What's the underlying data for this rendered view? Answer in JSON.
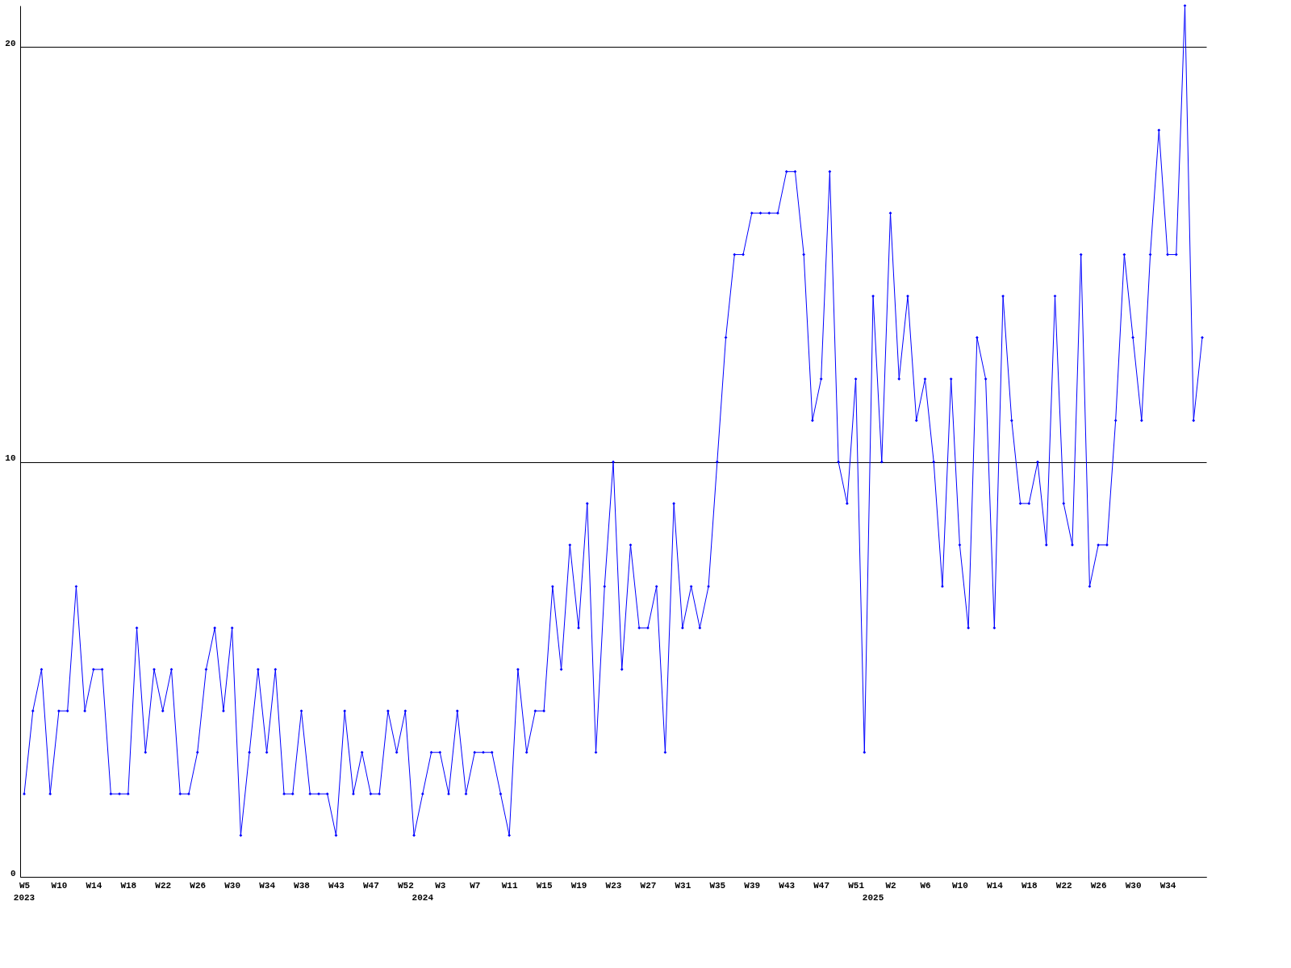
{
  "chart_data": {
    "type": "line",
    "categories": [
      "W5",
      null,
      null,
      null,
      "W10",
      null,
      null,
      null,
      "W14",
      null,
      null,
      null,
      "W18",
      null,
      null,
      null,
      "W22",
      null,
      null,
      null,
      "W26",
      null,
      null,
      null,
      "W30",
      null,
      null,
      null,
      "W34",
      null,
      null,
      null,
      "W38",
      null,
      null,
      null,
      "W43",
      null,
      null,
      null,
      "W47",
      null,
      null,
      null,
      "W52",
      null,
      null,
      null,
      "W3",
      null,
      null,
      null,
      "W7",
      null,
      null,
      null,
      "W11",
      null,
      null,
      null,
      "W15",
      null,
      null,
      null,
      "W19",
      null,
      null,
      null,
      "W23",
      null,
      null,
      null,
      "W27",
      null,
      null,
      null,
      "W31",
      null,
      null,
      null,
      "W35",
      null,
      null,
      null,
      "W39",
      null,
      null,
      null,
      "W43",
      null,
      null,
      null,
      "W47",
      null,
      null,
      null,
      "W51",
      null,
      null,
      null,
      "W2",
      null,
      null,
      null,
      "W6",
      null,
      null,
      null,
      "W10",
      null,
      null,
      null,
      "W14",
      null,
      null,
      null,
      "W18",
      null,
      null,
      null,
      "W22",
      null,
      null,
      null,
      "W26",
      null,
      null,
      null,
      "W30",
      null,
      null,
      null,
      "W34",
      null,
      null,
      null,
      null
    ],
    "series": [
      {
        "color": "#0000ff",
        "values": [
          2,
          4,
          5,
          2,
          4,
          4,
          7,
          4,
          5,
          5,
          2,
          2,
          2,
          6,
          3,
          5,
          4,
          5,
          2,
          2,
          3,
          5,
          6,
          4,
          6,
          1,
          3,
          5,
          3,
          5,
          2,
          2,
          4,
          2,
          2,
          2,
          1,
          4,
          2,
          3,
          2,
          2,
          4,
          3,
          4,
          1,
          2,
          3,
          3,
          2,
          4,
          2,
          3,
          3,
          3,
          2,
          1,
          5,
          3,
          4,
          4,
          7,
          5,
          8,
          6,
          9,
          3,
          7,
          10,
          5,
          8,
          6,
          6,
          7,
          3,
          9,
          6,
          7,
          6,
          7,
          10,
          13,
          15,
          15,
          16,
          16,
          16,
          16,
          17,
          17,
          15,
          11,
          12,
          17,
          10,
          9,
          12,
          3,
          14,
          10,
          16,
          12,
          14,
          11,
          12,
          10,
          7,
          12,
          8,
          6,
          13,
          12,
          6,
          14,
          11,
          9,
          9,
          10,
          8,
          14,
          9,
          8,
          15,
          7,
          8,
          8,
          11,
          15,
          13,
          11,
          15,
          18,
          15,
          15,
          21,
          11,
          13
        ]
      }
    ],
    "ylim": [
      0,
      21
    ],
    "yticks": [
      0,
      10,
      20
    ],
    "grid": "y",
    "marker": "diamond",
    "line_style": "solid",
    "legend": false,
    "annotations": [
      "2023",
      "2024",
      "2025"
    ]
  }
}
